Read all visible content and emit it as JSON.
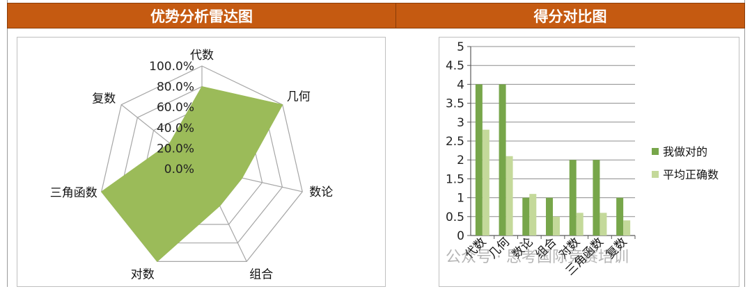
{
  "headers": {
    "left_title": "优势分析雷达图",
    "right_title": "得分对比图"
  },
  "watermark": {
    "text": "公众号 · 思考国际竞赛培训"
  },
  "colors": {
    "header_bg": "#c55a11",
    "radar_fill": "#9bbb59",
    "bar_series_1": "#77a64a",
    "bar_series_2": "#c4d99a"
  },
  "chart_data": [
    {
      "type": "radar",
      "axes": [
        "代数",
        "几何",
        "数论",
        "组合",
        "对数",
        "三角函数",
        "复数"
      ],
      "values": [
        0.8,
        1.0,
        0.4,
        0.4,
        1.0,
        1.0,
        0.4
      ],
      "tick_labels": [
        "0.0%",
        "20.0%",
        "40.0%",
        "60.0%",
        "80.0%",
        "100.0%"
      ],
      "rlim": [
        0,
        1
      ],
      "grid": true
    },
    {
      "type": "bar",
      "categories": [
        "代数",
        "几何",
        "数论",
        "组合",
        "对数",
        "三角函数",
        "复数"
      ],
      "series": [
        {
          "name": "我做对的",
          "values": [
            4,
            4,
            1,
            1,
            2,
            2,
            1
          ]
        },
        {
          "name": "平均正确数",
          "values": [
            2.8,
            2.1,
            1.1,
            0.5,
            0.6,
            0.6,
            0.4
          ]
        }
      ],
      "yticks": [
        "0",
        "0.5",
        "1",
        "1.5",
        "2",
        "2.5",
        "3",
        "3.5",
        "4",
        "4.5",
        "5"
      ],
      "ylim": [
        0,
        5
      ],
      "grid": true,
      "legend": "right"
    }
  ]
}
